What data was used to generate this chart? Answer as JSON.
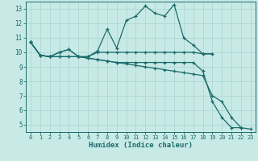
{
  "xlabel": "Humidex (Indice chaleur)",
  "bg_color": "#c8eae6",
  "line_color": "#1a6b6b",
  "grid_color": "#b0d8d4",
  "xlim": [
    -0.5,
    23.5
  ],
  "ylim": [
    4.5,
    13.5
  ],
  "xticks": [
    0,
    1,
    2,
    3,
    4,
    5,
    6,
    7,
    8,
    9,
    10,
    11,
    12,
    13,
    14,
    15,
    16,
    17,
    18,
    19,
    20,
    21,
    22,
    23
  ],
  "yticks": [
    5,
    6,
    7,
    8,
    9,
    10,
    11,
    12,
    13
  ],
  "lines": [
    {
      "x": [
        0,
        1,
        2,
        3,
        4,
        5,
        6,
        7,
        8,
        9,
        10,
        11,
        12,
        13,
        14,
        15,
        16,
        17,
        18,
        19
      ],
      "y": [
        10.7,
        9.8,
        9.7,
        10.0,
        10.2,
        9.7,
        9.7,
        10.1,
        11.6,
        10.3,
        12.2,
        12.5,
        13.2,
        12.7,
        12.5,
        13.3,
        11.0,
        10.5,
        9.9,
        9.9
      ]
    },
    {
      "x": [
        0,
        1,
        2,
        3,
        4,
        5,
        6,
        7,
        8,
        9,
        10,
        11,
        12,
        13,
        14,
        15,
        16,
        17,
        18,
        19
      ],
      "y": [
        10.7,
        9.8,
        9.7,
        10.0,
        10.2,
        9.7,
        9.7,
        10.0,
        10.0,
        10.0,
        10.0,
        10.0,
        10.0,
        10.0,
        10.0,
        10.0,
        10.0,
        10.0,
        9.9,
        9.9
      ]
    },
    {
      "x": [
        0,
        1,
        2,
        3,
        4,
        5,
        6,
        7,
        8,
        9,
        10,
        11,
        12,
        13,
        14,
        15,
        16,
        17,
        18,
        19,
        20,
        21,
        22
      ],
      "y": [
        10.7,
        9.8,
        9.7,
        9.7,
        9.7,
        9.7,
        9.6,
        9.5,
        9.4,
        9.3,
        9.3,
        9.3,
        9.3,
        9.3,
        9.3,
        9.3,
        9.3,
        9.3,
        8.7,
        6.6,
        5.5,
        4.8,
        4.8
      ]
    },
    {
      "x": [
        0,
        1,
        2,
        3,
        4,
        5,
        6,
        7,
        8,
        9,
        10,
        11,
        12,
        13,
        14,
        15,
        16,
        17,
        18,
        19,
        20,
        21,
        22,
        23
      ],
      "y": [
        10.7,
        9.8,
        9.7,
        9.7,
        9.7,
        9.7,
        9.6,
        9.5,
        9.4,
        9.3,
        9.2,
        9.1,
        9.0,
        8.9,
        8.8,
        8.7,
        8.6,
        8.5,
        8.4,
        7.0,
        6.6,
        5.5,
        4.8,
        4.7
      ]
    }
  ]
}
